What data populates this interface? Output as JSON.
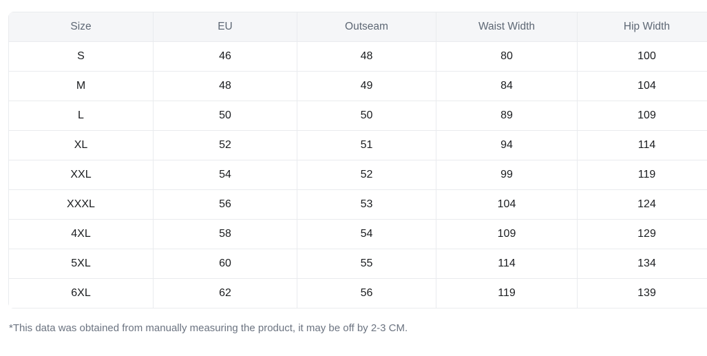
{
  "table": {
    "columns": [
      "Size",
      "EU",
      "Outseam",
      "Waist Width",
      "Hip Width"
    ],
    "rows": [
      [
        "S",
        "46",
        "48",
        "80",
        "100"
      ],
      [
        "M",
        "48",
        "49",
        "84",
        "104"
      ],
      [
        "L",
        "50",
        "50",
        "89",
        "109"
      ],
      [
        "XL",
        "52",
        "51",
        "94",
        "114"
      ],
      [
        "XXL",
        "54",
        "52",
        "99",
        "119"
      ],
      [
        "XXXL",
        "56",
        "53",
        "104",
        "124"
      ],
      [
        "4XL",
        "58",
        "54",
        "109",
        "129"
      ],
      [
        "5XL",
        "60",
        "55",
        "114",
        "134"
      ],
      [
        "6XL",
        "62",
        "56",
        "119",
        "139"
      ]
    ]
  },
  "footnote": "*This data was obtained from manually measuring the product, it may be off by 2-3 CM.",
  "colors": {
    "header_bg": "#f5f6f8",
    "header_text": "#5d6774",
    "body_text": "#1a1c1f",
    "grid_line": "#e9ebee",
    "footnote_text": "#6b7380"
  }
}
